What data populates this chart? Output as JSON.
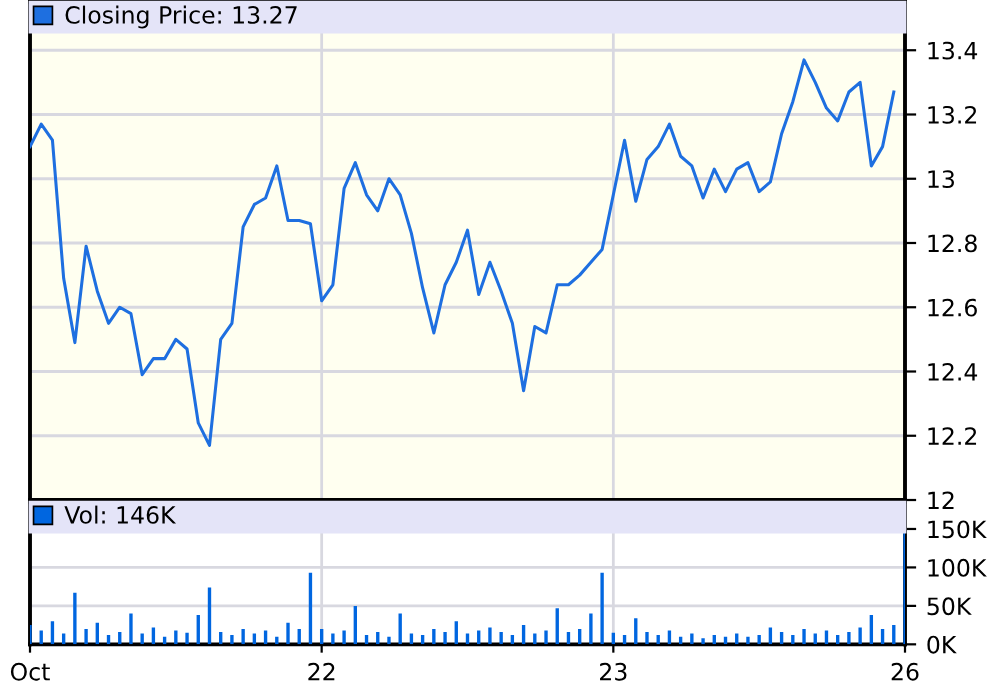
{
  "chart_data": [
    {
      "type": "line",
      "categories": [
        null,
        null,
        null,
        null,
        null,
        null,
        null,
        null,
        null,
        null,
        null,
        null,
        null,
        null,
        null,
        null,
        null,
        null,
        null,
        null,
        null,
        null,
        null,
        null,
        null,
        null,
        null,
        null,
        null,
        null,
        null,
        null,
        null,
        null,
        null,
        null,
        null,
        null,
        null,
        null,
        null,
        null,
        null,
        null,
        null,
        null,
        null,
        null,
        null,
        null,
        null,
        null,
        null,
        null,
        null,
        null,
        null,
        null,
        null,
        null,
        null,
        null,
        null,
        null,
        null,
        null,
        null,
        null,
        null,
        null,
        null,
        null,
        null,
        null,
        null,
        null,
        null,
        null,
        null
      ],
      "ylim": [
        12,
        13.55
      ],
      "yticks": [
        12,
        12.2,
        12.4,
        12.6,
        12.8,
        13,
        13.2,
        13.4
      ],
      "grid": true,
      "legend": "top left",
      "tick_labels": "y",
      "line_style": "solid",
      "series": [
        {
          "name": "Closing Price: 13.27",
          "color": "#1e6fe0",
          "values": [
            13.1,
            13.17,
            13.12,
            12.69,
            12.49,
            12.79,
            12.65,
            12.55,
            12.6,
            12.58,
            12.39,
            12.44,
            12.44,
            12.5,
            12.47,
            12.24,
            12.17,
            12.5,
            12.55,
            12.85,
            12.92,
            12.94,
            13.04,
            12.87,
            12.87,
            12.86,
            12.62,
            12.67,
            12.97,
            13.05,
            12.95,
            12.9,
            13.0,
            12.95,
            12.83,
            12.66,
            12.52,
            12.67,
            12.74,
            12.84,
            12.64,
            12.74,
            12.65,
            12.55,
            12.34,
            12.54,
            12.52,
            12.67,
            12.67,
            12.7,
            12.74,
            12.78,
            12.95,
            13.12,
            12.93,
            13.06,
            13.1,
            13.17,
            13.07,
            13.04,
            12.94,
            13.03,
            12.96,
            13.03,
            13.05,
            12.96,
            12.99,
            13.14,
            13.24,
            13.37,
            13.3,
            13.22,
            13.18,
            13.27,
            13.3,
            13.04,
            13.1,
            13.27,
            null
          ]
        }
      ]
    },
    {
      "type": "bar",
      "categories": [
        "Oct",
        null,
        null,
        null,
        null,
        null,
        null,
        null,
        null,
        null,
        null,
        null,
        null,
        null,
        null,
        null,
        null,
        null,
        null,
        null,
        null,
        null,
        null,
        null,
        null,
        null,
        "22",
        null,
        null,
        null,
        null,
        null,
        null,
        null,
        null,
        null,
        null,
        null,
        null,
        null,
        null,
        null,
        null,
        null,
        null,
        null,
        null,
        null,
        null,
        null,
        null,
        null,
        "23",
        null,
        null,
        null,
        null,
        null,
        null,
        null,
        null,
        null,
        null,
        null,
        null,
        null,
        null,
        null,
        null,
        null,
        null,
        null,
        null,
        null,
        null,
        null,
        null,
        null,
        "26"
      ],
      "ylim": [
        0,
        185
      ],
      "yticks": [
        {
          "value": 0,
          "label": "0K"
        },
        {
          "value": 50,
          "label": "50K"
        },
        {
          "value": 100,
          "label": "100K"
        },
        {
          "value": 150,
          "label": "150K"
        }
      ],
      "grid": true,
      "legend": "top left",
      "series": [
        {
          "name": "Vol: 146K",
          "color": "#0066e0",
          "values": [
            25,
            18,
            30,
            14,
            67,
            20,
            28,
            12,
            16,
            40,
            14,
            22,
            10,
            18,
            15,
            38,
            74,
            16,
            12,
            20,
            14,
            18,
            10,
            28,
            20,
            93,
            20,
            14,
            18,
            50,
            12,
            16,
            10,
            40,
            14,
            12,
            20,
            16,
            30,
            14,
            18,
            22,
            16,
            12,
            25,
            14,
            18,
            47,
            16,
            20,
            40,
            93,
            15,
            12,
            34,
            16,
            12,
            18,
            10,
            14,
            8,
            12,
            10,
            14,
            10,
            12,
            22,
            16,
            12,
            20,
            14,
            18,
            12,
            16,
            22,
            38,
            20,
            25,
            146
          ]
        }
      ]
    }
  ]
}
